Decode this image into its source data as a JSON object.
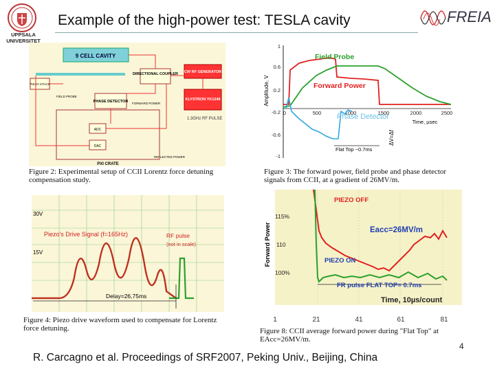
{
  "header": {
    "title": "Example of the high-power test: TESLA cavity",
    "university": [
      "UPPSALA",
      "UNIVERSITET"
    ],
    "logo_text": "FREIA"
  },
  "figure2": {
    "caption": "Figure 2: Experimental setup of CCII Lorentz force detuning compensation study.",
    "blocks": {
      "cavity": "9 CELL CAVITY",
      "coupler": "DIRECTIONAL COUPLER",
      "generator": "CW RF GENERATOR",
      "klystron": "KLYSTRON YK1248",
      "phase": "PHASE DETECTOR",
      "crate": "PXI CRATE",
      "rf_pulse": "1.3GHz RF PULSE",
      "piezo": "PIEZO STACK",
      "adc": "ADC",
      "dac": "DAC",
      "field_probe": "FIELD PROBE",
      "forward_power": "FORWARD POWER",
      "reflected_power": "REFLECTED POWER"
    }
  },
  "figure3": {
    "caption": "Figure 3: The forward power, field probe and phase detector signals from CCII, at a gradient of 26MV/m.",
    "ylabel": "Amplitude, V",
    "xlabel": "Time, µsec",
    "yticks": [
      "1",
      "0.6",
      "0.2",
      "-0.2",
      "-0.6",
      "-1"
    ],
    "xticks": [
      "0",
      "500",
      "1000",
      "1500",
      "2000",
      "2500"
    ],
    "labels": {
      "field_probe": "Field Probe",
      "forward_power": "Forward Power",
      "phase_detector": "Phase Detector",
      "flat_top": "Flat Top ~0.7ms",
      "delta": "ΔV=Δf"
    }
  },
  "figure4": {
    "caption": "Figure 4: Piezo drive waveform used to compensate for Lorentz force detuning.",
    "labels": {
      "v30": "30V",
      "v15": "15V",
      "drive": "Piezo's Drive Signal (f=165Hz)",
      "rf": "RF pulse",
      "rf_note": "(not in scale)",
      "delay": "Delay=26,75ms"
    }
  },
  "figure8": {
    "caption": "Figure 8: CCII average forward power during \"Flat Top\" at EAcc=26MV/m.",
    "ylabel": "Forward Power",
    "yticks": [
      "115%",
      "110",
      "100%"
    ],
    "xticks": [
      "1",
      "21",
      "41",
      "61",
      "81"
    ],
    "labels": {
      "off": "PIEZO OFF",
      "on": "PIEZO ON",
      "eacc": "Eacc=26MV/m",
      "flat": "FR pulse FLAT TOP= 0.7ms",
      "time": "Time, 10µs/count"
    }
  },
  "footer": {
    "citation": "R. Carcagno et al. Proceedings of SRF2007, Peking Univ., Beijing, China",
    "page_number": "4"
  },
  "colors": {
    "accent_red": "#e02020",
    "accent_green": "#2aa02a",
    "accent_blue": "#30a8e0",
    "panel_bg": "#fbf6d8",
    "figure8_bg": "#f6f2c8"
  }
}
